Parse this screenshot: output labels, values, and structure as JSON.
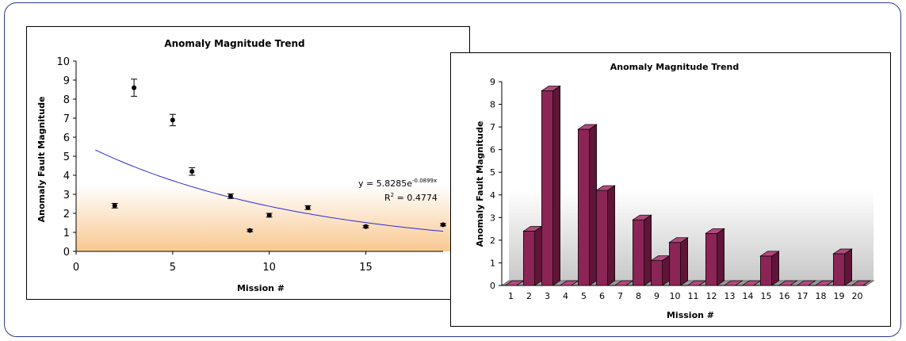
{
  "chart_data": [
    {
      "type": "scatter",
      "title": "Anomaly Magnitude Trend",
      "xlabel": "Mission #",
      "ylabel": "Anomaly Fault Magnitude",
      "xlim": [
        0,
        19
      ],
      "ylim": [
        0,
        10
      ],
      "xticks": [
        "0",
        "5",
        "10",
        "15"
      ],
      "yticks": [
        "0",
        "1",
        "2",
        "3",
        "4",
        "5",
        "6",
        "7",
        "8",
        "9",
        "10"
      ],
      "points": [
        {
          "x": 2,
          "y": 2.4,
          "err": 0.12
        },
        {
          "x": 3,
          "y": 8.6,
          "err": 0.45
        },
        {
          "x": 5,
          "y": 6.9,
          "err": 0.3
        },
        {
          "x": 6,
          "y": 4.2,
          "err": 0.2
        },
        {
          "x": 8,
          "y": 2.9,
          "err": 0.12
        },
        {
          "x": 9,
          "y": 1.1,
          "err": 0.06
        },
        {
          "x": 10,
          "y": 1.9,
          "err": 0.1
        },
        {
          "x": 12,
          "y": 2.3,
          "err": 0.1
        },
        {
          "x": 15,
          "y": 1.3,
          "err": 0.06
        },
        {
          "x": 19,
          "y": 1.4,
          "err": 0.06
        }
      ],
      "trendline": {
        "type": "exponential",
        "a": 5.8285,
        "b": -0.0899,
        "x_start": 1,
        "x_end": 19,
        "color": "#2b2bd6",
        "equation_prefix": "y = 5.8285e",
        "equation_exponent": "-0.0899x",
        "r2_prefix": "R",
        "r2_exp": "2",
        "r2_value": " = 0.4774"
      },
      "background_gradient": {
        "top_y": 3.5,
        "colors": [
          "#ffffff",
          "#f8c890"
        ]
      },
      "grid": false,
      "legend": "none"
    },
    {
      "type": "bar",
      "style": "3d",
      "title": "Anomaly Magnitude Trend",
      "xlabel": "Mission #",
      "ylabel": "Anomaly Fault Magnitude",
      "ylim": [
        0,
        9
      ],
      "yticks": [
        "0",
        "1",
        "2",
        "3",
        "4",
        "5",
        "6",
        "7",
        "8",
        "9"
      ],
      "categories": [
        "1",
        "2",
        "3",
        "4",
        "5",
        "6",
        "7",
        "8",
        "9",
        "10",
        "11",
        "12",
        "13",
        "14",
        "15",
        "16",
        "17",
        "18",
        "19",
        "20"
      ],
      "values": [
        0,
        2.4,
        8.6,
        0,
        6.9,
        4.2,
        0,
        2.9,
        1.1,
        1.9,
        0,
        2.3,
        0,
        0,
        1.3,
        0,
        0,
        0,
        1.4,
        0
      ],
      "bar_color": "#8b2556",
      "background_gradient": {
        "top_y": 4,
        "colors": [
          "#ffffff",
          "#c8c8c8"
        ]
      },
      "grid": false,
      "legend": "none"
    }
  ]
}
